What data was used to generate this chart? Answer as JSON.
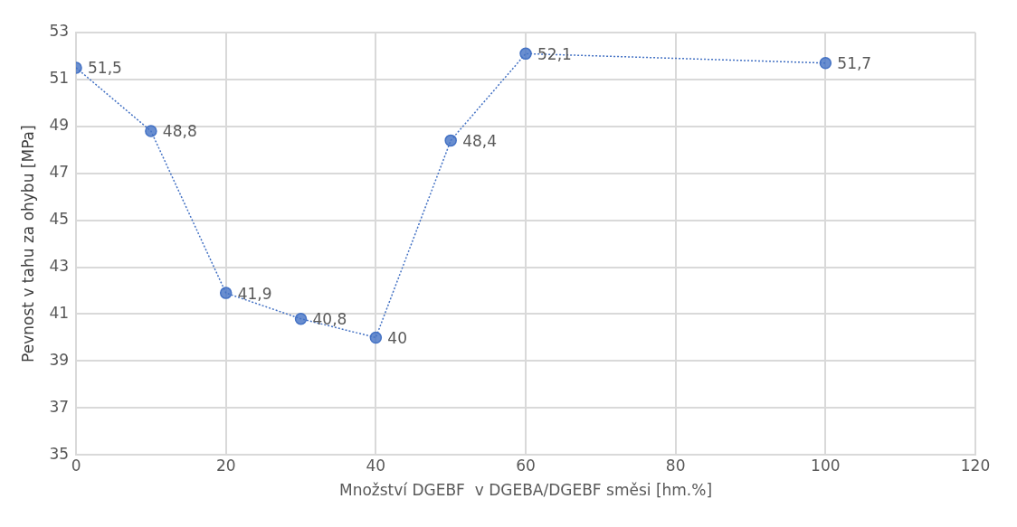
{
  "chart_data": {
    "type": "line",
    "xlabel": "Množství DGEBF  v DGEBA/DGEBF směsi [hm.%]",
    "ylabel": "Pevnost v tahu za ohybu [MPa]",
    "x": [
      0,
      10,
      20,
      30,
      40,
      50,
      60,
      100
    ],
    "values": [
      51.5,
      48.8,
      41.9,
      40.8,
      40,
      48.4,
      52.1,
      51.7
    ],
    "value_labels": [
      "51,5",
      "48,8",
      "41,9",
      "40,8",
      "40",
      "48,4",
      "52,1",
      "51,7"
    ],
    "color": "#4472c4",
    "xlim": [
      0,
      120
    ],
    "xticks": [
      0,
      20,
      40,
      60,
      80,
      100,
      120
    ],
    "ylim": [
      35,
      53
    ],
    "yticks": [
      35,
      37,
      39,
      41,
      43,
      45,
      47,
      49,
      51,
      53
    ],
    "grid": true,
    "marker": "circle",
    "line_style": "dotted"
  }
}
